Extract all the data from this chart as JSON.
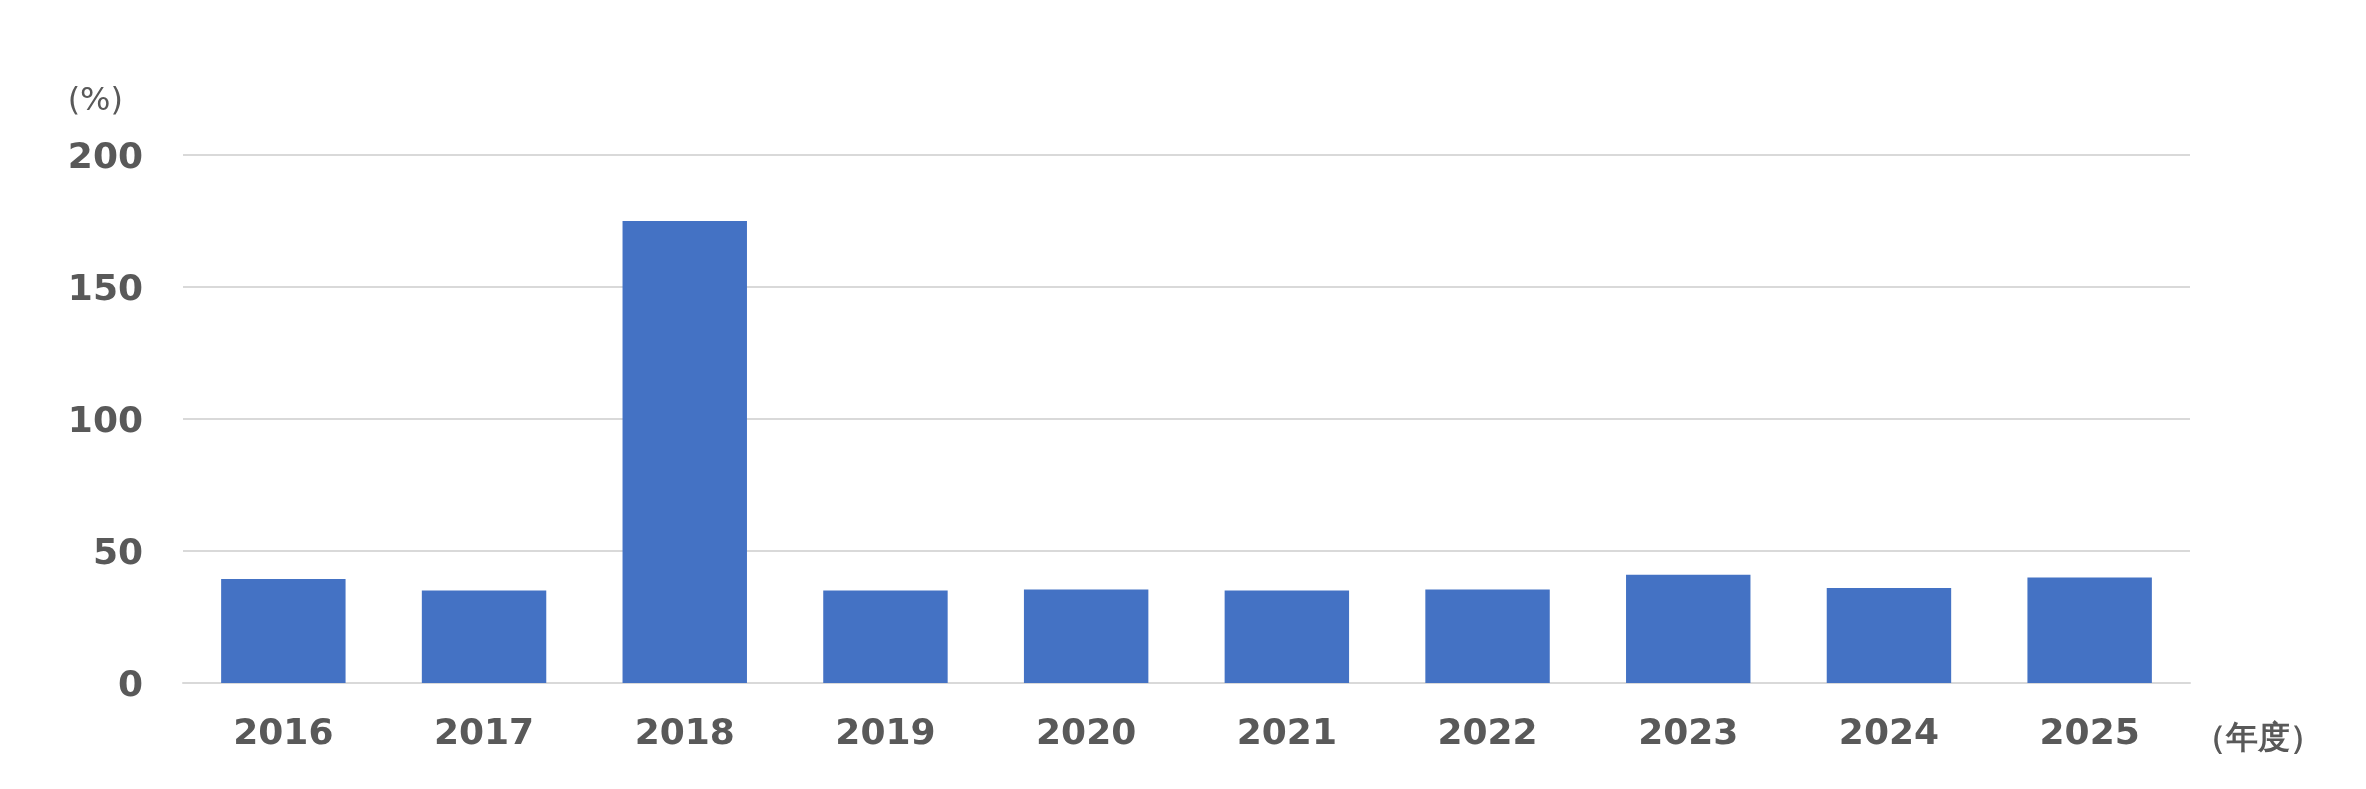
{
  "chart_data": {
    "type": "bar",
    "ylabel": "(%)",
    "xlabel": "（年度）",
    "categories": [
      "2016",
      "2017",
      "2018",
      "2019",
      "2020",
      "2021",
      "2022",
      "2023",
      "2024",
      "2025"
    ],
    "values": [
      39.4,
      35,
      175,
      35,
      35.4,
      35,
      35.4,
      41,
      36,
      40
    ],
    "color": "#4472c4",
    "ylim": [
      0,
      200
    ],
    "yticks": [
      0,
      50,
      100,
      150,
      200
    ],
    "grid": "y"
  }
}
